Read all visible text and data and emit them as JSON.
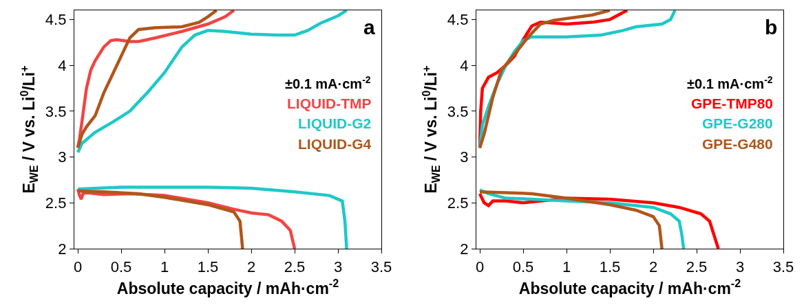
{
  "chart_data": [
    {
      "type": "line",
      "xlabel": "Absolute capacity / mAh·cm$^{-2}$",
      "ylabel": "E$_{WE}$ / V vs. Li$^{0}$/Li$^{+}$",
      "annotations": [
        "a",
        "±0.1 mA·cm$^{-2}$"
      ],
      "xlim": [
        -0.04,
        3.5
      ],
      "ylim": [
        2,
        4.6
      ],
      "xticks": [
        0,
        0.5,
        1,
        1.5,
        2,
        2.5,
        3,
        3.5
      ],
      "yticks": [
        2,
        2.5,
        3,
        3.5,
        4,
        4.5
      ],
      "grid": false,
      "legend": "right",
      "marker": "none",
      "line_style": "solid",
      "series": [
        {
          "name": "LIQUID-TMP",
          "color": "#f04545",
          "x": [
            0,
            0.02,
            0.05,
            0.1,
            0.15,
            0.2,
            0.3,
            0.38,
            0.45,
            0.6,
            0.7,
            0.9,
            1.2,
            1.5,
            1.7,
            1.8,
            null,
            0,
            0.02,
            0.04,
            0.06,
            0.1,
            0.3,
            0.6,
            1.0,
            1.5,
            1.8,
            2.0,
            2.2,
            2.35,
            2.45,
            2.5
          ],
          "values": [
            3.1,
            3.2,
            3.4,
            3.75,
            3.95,
            4.05,
            4.2,
            4.27,
            4.28,
            4.26,
            4.26,
            4.3,
            4.37,
            4.45,
            4.53,
            4.6,
            null,
            2.65,
            2.58,
            2.54,
            2.6,
            2.61,
            2.59,
            2.6,
            2.58,
            2.5,
            2.43,
            2.39,
            2.37,
            2.3,
            2.2,
            2.0
          ]
        },
        {
          "name": "LIQUID-G2",
          "color": "#1ec8c8",
          "x": [
            0,
            0.05,
            0.2,
            0.4,
            0.6,
            0.8,
            1.0,
            1.2,
            1.35,
            1.5,
            1.7,
            2.0,
            2.3,
            2.5,
            2.65,
            2.8,
            3.0,
            3.1,
            null,
            0,
            0.5,
            1,
            1.5,
            2.0,
            2.5,
            2.9,
            3.05,
            3.08,
            3.1
          ],
          "values": [
            3.05,
            3.15,
            3.27,
            3.38,
            3.5,
            3.7,
            3.92,
            4.2,
            4.33,
            4.38,
            4.37,
            4.34,
            4.33,
            4.33,
            4.38,
            4.46,
            4.54,
            4.6,
            null,
            2.65,
            2.67,
            2.67,
            2.67,
            2.66,
            2.62,
            2.58,
            2.52,
            2.3,
            2.0
          ]
        },
        {
          "name": "LIQUID-G4",
          "color": "#b0561a",
          "x": [
            0,
            0.05,
            0.1,
            0.2,
            0.3,
            0.4,
            0.5,
            0.6,
            0.7,
            0.9,
            1.2,
            1.4,
            1.5,
            1.6,
            null,
            0,
            0.3,
            0.7,
            1.0,
            1.5,
            1.8,
            1.87,
            1.9
          ],
          "values": [
            3.1,
            3.25,
            3.33,
            3.45,
            3.7,
            3.9,
            4.1,
            4.3,
            4.39,
            4.41,
            4.42,
            4.47,
            4.53,
            4.6,
            null,
            2.63,
            2.62,
            2.6,
            2.56,
            2.48,
            2.4,
            2.3,
            2.0
          ]
        }
      ]
    },
    {
      "type": "line",
      "xlabel": "Absolute capacity / mAh·cm$^{-2}$",
      "ylabel": "E$_{WE}$ / V vs. Li$^{0}$/Li$^{+}$",
      "annotations": [
        "b",
        "±0.1 mA·cm$^{-2}$"
      ],
      "xlim": [
        -0.04,
        3.5
      ],
      "ylim": [
        2,
        4.6
      ],
      "xticks": [
        0,
        0.5,
        1,
        1.5,
        2,
        2.5,
        3,
        3.5
      ],
      "yticks": [
        2,
        2.5,
        3,
        3.5,
        4,
        4.5
      ],
      "grid": false,
      "legend": "right",
      "marker": "none",
      "line_style": "solid",
      "series": [
        {
          "name": "GPE-TMP80",
          "color": "#ff0000",
          "x": [
            0,
            0.01,
            0.03,
            0.1,
            0.2,
            0.3,
            0.4,
            0.5,
            0.6,
            0.7,
            1.0,
            1.3,
            1.5,
            1.7,
            null,
            0,
            0.05,
            0.1,
            0.15,
            0.3,
            0.5,
            0.8,
            1.0,
            1.5,
            2.0,
            2.3,
            2.55,
            2.65,
            2.7,
            2.75
          ],
          "values": [
            3.1,
            3.5,
            3.75,
            3.87,
            3.92,
            4.0,
            4.1,
            4.28,
            4.43,
            4.47,
            4.45,
            4.47,
            4.5,
            4.6,
            null,
            2.6,
            2.5,
            2.47,
            2.52,
            2.52,
            2.5,
            2.53,
            2.55,
            2.54,
            2.5,
            2.45,
            2.38,
            2.3,
            2.15,
            2.0
          ]
        },
        {
          "name": "GPE-G280",
          "color": "#1ec8c8",
          "x": [
            0,
            0.03,
            0.1,
            0.2,
            0.3,
            0.4,
            0.5,
            0.6,
            1.0,
            1.4,
            1.65,
            1.8,
            2.1,
            2.2,
            2.25,
            null,
            0,
            0.1,
            0.3,
            0.6,
            1.0,
            1.5,
            2.0,
            2.2,
            2.3,
            2.33,
            2.35
          ],
          "values": [
            3.1,
            3.35,
            3.55,
            3.8,
            4.0,
            4.15,
            4.27,
            4.31,
            4.31,
            4.33,
            4.38,
            4.42,
            4.45,
            4.5,
            4.6,
            null,
            2.64,
            2.6,
            2.55,
            2.54,
            2.52,
            2.5,
            2.45,
            2.38,
            2.3,
            2.15,
            2.0
          ]
        },
        {
          "name": "GPE-G480",
          "color": "#b0561a",
          "x": [
            0,
            0.05,
            0.15,
            0.25,
            0.4,
            0.55,
            0.7,
            0.85,
            1.0,
            1.3,
            1.5,
            null,
            0,
            0.3,
            0.6,
            1.0,
            1.5,
            1.8,
            2.0,
            2.07,
            2.1
          ],
          "values": [
            3.1,
            3.25,
            3.65,
            3.95,
            4.12,
            4.3,
            4.45,
            4.49,
            4.51,
            4.55,
            4.6,
            null,
            2.62,
            2.61,
            2.6,
            2.55,
            2.48,
            2.42,
            2.35,
            2.25,
            2.0
          ]
        }
      ]
    }
  ]
}
